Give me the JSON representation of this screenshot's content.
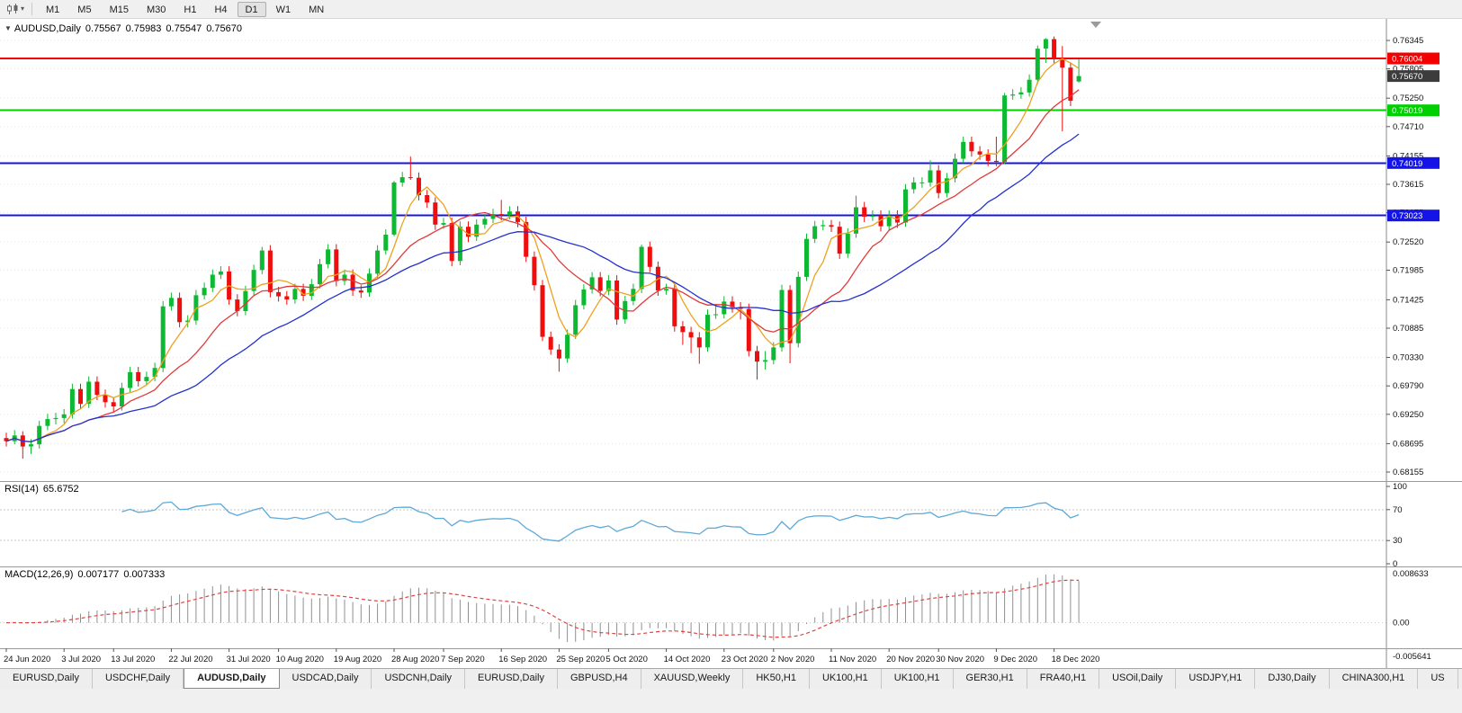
{
  "toolbar": {
    "timeframes": [
      {
        "label": "M1",
        "active": false
      },
      {
        "label": "M5",
        "active": false
      },
      {
        "label": "M15",
        "active": false
      },
      {
        "label": "M30",
        "active": false
      },
      {
        "label": "H1",
        "active": false
      },
      {
        "label": "H4",
        "active": false
      },
      {
        "label": "D1",
        "active": true
      },
      {
        "label": "W1",
        "active": false
      },
      {
        "label": "MN",
        "active": false
      }
    ]
  },
  "chart": {
    "symbol_title": "AUDUSD,Daily",
    "ohlc": {
      "open": "0.75567",
      "high": "0.75983",
      "low": "0.75547",
      "close": "0.75670"
    },
    "price_axis": {
      "labels": [
        "0.76345",
        "0.75805",
        "0.75250",
        "0.74710",
        "0.74155",
        "0.73615",
        "0.73075",
        "0.72520",
        "0.71985",
        "0.71425",
        "0.70885",
        "0.70330",
        "0.69790",
        "0.69250",
        "0.68695",
        "0.68155"
      ]
    },
    "price_lines": [
      {
        "price": 0.76004,
        "color": "#f40000",
        "label": "0.76004"
      },
      {
        "price": 0.75019,
        "color": "#00d000",
        "label": "0.75019"
      },
      {
        "price": 0.74019,
        "color": "#1414e6",
        "label": "0.74019"
      },
      {
        "price": 0.73023,
        "color": "#1414e6",
        "label": "0.73023"
      }
    ],
    "current_price_tag": {
      "price": 0.7567,
      "label": "0.75670",
      "color": "#3c3c3c"
    },
    "moving_averages": [
      {
        "name": "ma-fast",
        "period": 5,
        "color": "#eea11e"
      },
      {
        "name": "ma-mid",
        "period": 12,
        "color": "#e03a3a"
      },
      {
        "name": "ma-slow",
        "period": 24,
        "color": "#2433cd"
      }
    ],
    "colors": {
      "bull": "#0db832",
      "bear": "#ef0d0d",
      "grid": "#e6e6e6",
      "background": "#ffffff"
    },
    "chart_data": {
      "type": "candlestick",
      "symbol": "AUDUSD",
      "timeframe": "Daily",
      "candles": [
        [
          0.688,
          0.689,
          0.6864,
          0.6874
        ],
        [
          0.6874,
          0.6895,
          0.6868,
          0.6885
        ],
        [
          0.6885,
          0.6893,
          0.6841,
          0.6864
        ],
        [
          0.6864,
          0.6878,
          0.685,
          0.6868
        ],
        [
          0.6868,
          0.6913,
          0.686,
          0.6903
        ],
        [
          0.6903,
          0.6926,
          0.6895,
          0.6916
        ],
        [
          0.6916,
          0.6928,
          0.6906,
          0.6918
        ],
        [
          0.6918,
          0.6935,
          0.6908,
          0.6925
        ],
        [
          0.6925,
          0.6983,
          0.6917,
          0.6973
        ],
        [
          0.6973,
          0.6983,
          0.6935,
          0.6945
        ],
        [
          0.6945,
          0.6997,
          0.6937,
          0.6987
        ],
        [
          0.6987,
          0.6997,
          0.6952,
          0.6962
        ],
        [
          0.6962,
          0.6972,
          0.6938,
          0.6948
        ],
        [
          0.6948,
          0.6958,
          0.693,
          0.694
        ],
        [
          0.694,
          0.6985,
          0.6932,
          0.6975
        ],
        [
          0.6975,
          0.7015,
          0.6967,
          0.7005
        ],
        [
          0.7005,
          0.7015,
          0.6978,
          0.6988
        ],
        [
          0.6988,
          0.7006,
          0.698,
          0.6996
        ],
        [
          0.6996,
          0.7023,
          0.6988,
          0.7013
        ],
        [
          0.7013,
          0.714,
          0.7005,
          0.713
        ],
        [
          0.713,
          0.7156,
          0.7122,
          0.7146
        ],
        [
          0.7146,
          0.7156,
          0.709,
          0.71
        ],
        [
          0.71,
          0.7113,
          0.709,
          0.7103
        ],
        [
          0.7103,
          0.7161,
          0.7095,
          0.7151
        ],
        [
          0.7151,
          0.7175,
          0.7143,
          0.7165
        ],
        [
          0.7165,
          0.72,
          0.7157,
          0.719
        ],
        [
          0.719,
          0.7206,
          0.7182,
          0.7196
        ],
        [
          0.7196,
          0.7206,
          0.7133,
          0.7143
        ],
        [
          0.7143,
          0.7153,
          0.7111,
          0.7121
        ],
        [
          0.7121,
          0.7169,
          0.7113,
          0.7159
        ],
        [
          0.7159,
          0.7209,
          0.7151,
          0.7199
        ],
        [
          0.7199,
          0.7243,
          0.7191,
          0.7236
        ],
        [
          0.7236,
          0.7246,
          0.7147,
          0.7157
        ],
        [
          0.7157,
          0.7167,
          0.7139,
          0.7149
        ],
        [
          0.7149,
          0.7159,
          0.7133,
          0.7143
        ],
        [
          0.7143,
          0.7173,
          0.7135,
          0.7163
        ],
        [
          0.7163,
          0.7173,
          0.714,
          0.715
        ],
        [
          0.715,
          0.7182,
          0.7142,
          0.7172
        ],
        [
          0.7172,
          0.722,
          0.7164,
          0.721
        ],
        [
          0.721,
          0.7248,
          0.7202,
          0.7238
        ],
        [
          0.7238,
          0.7248,
          0.7168,
          0.7178
        ],
        [
          0.7178,
          0.72,
          0.717,
          0.719
        ],
        [
          0.719,
          0.72,
          0.715,
          0.716
        ],
        [
          0.716,
          0.717,
          0.7146,
          0.7156
        ],
        [
          0.7156,
          0.7202,
          0.7148,
          0.7192
        ],
        [
          0.7192,
          0.7246,
          0.7184,
          0.7236
        ],
        [
          0.7236,
          0.7276,
          0.7228,
          0.7266
        ],
        [
          0.7266,
          0.7368,
          0.7263,
          0.7365
        ],
        [
          0.7365,
          0.7385,
          0.7357,
          0.7375
        ],
        [
          0.7375,
          0.7414,
          0.737,
          0.7374
        ],
        [
          0.7374,
          0.7384,
          0.7331,
          0.7341
        ],
        [
          0.7341,
          0.7351,
          0.7317,
          0.7327
        ],
        [
          0.7327,
          0.7337,
          0.7275,
          0.7285
        ],
        [
          0.7285,
          0.7298,
          0.7277,
          0.7288
        ],
        [
          0.7288,
          0.7298,
          0.7206,
          0.7216
        ],
        [
          0.7216,
          0.7291,
          0.7208,
          0.7281
        ],
        [
          0.7281,
          0.7291,
          0.7252,
          0.7262
        ],
        [
          0.7262,
          0.7295,
          0.7254,
          0.7285
        ],
        [
          0.7285,
          0.7306,
          0.7277,
          0.7296
        ],
        [
          0.7296,
          0.7315,
          0.7288,
          0.7305
        ],
        [
          0.7305,
          0.7332,
          0.7293,
          0.7303
        ],
        [
          0.7303,
          0.732,
          0.7295,
          0.731
        ],
        [
          0.731,
          0.732,
          0.728,
          0.729
        ],
        [
          0.729,
          0.73,
          0.7214,
          0.7224
        ],
        [
          0.7224,
          0.7234,
          0.716,
          0.717
        ],
        [
          0.717,
          0.718,
          0.7064,
          0.7072
        ],
        [
          0.7072,
          0.7082,
          0.7038,
          0.7048
        ],
        [
          0.7048,
          0.7058,
          0.7006,
          0.7031
        ],
        [
          0.7031,
          0.7086,
          0.7023,
          0.7076
        ],
        [
          0.7076,
          0.7142,
          0.7068,
          0.7132
        ],
        [
          0.7132,
          0.7172,
          0.7124,
          0.7162
        ],
        [
          0.7162,
          0.7195,
          0.7154,
          0.7185
        ],
        [
          0.7185,
          0.7195,
          0.7149,
          0.7159
        ],
        [
          0.7159,
          0.7189,
          0.7151,
          0.7179
        ],
        [
          0.7179,
          0.7189,
          0.7095,
          0.7105
        ],
        [
          0.7105,
          0.715,
          0.7097,
          0.714
        ],
        [
          0.714,
          0.7173,
          0.7132,
          0.7163
        ],
        [
          0.7163,
          0.7247,
          0.7155,
          0.7243
        ],
        [
          0.7243,
          0.7253,
          0.7195,
          0.7205
        ],
        [
          0.7205,
          0.7215,
          0.715,
          0.716
        ],
        [
          0.716,
          0.7173,
          0.7152,
          0.7163
        ],
        [
          0.7163,
          0.7173,
          0.7082,
          0.7092
        ],
        [
          0.7092,
          0.7102,
          0.7057,
          0.7081
        ],
        [
          0.7081,
          0.7091,
          0.7041,
          0.7071
        ],
        [
          0.7071,
          0.7081,
          0.7021,
          0.7052
        ],
        [
          0.7052,
          0.7124,
          0.7044,
          0.7114
        ],
        [
          0.7114,
          0.7134,
          0.7106,
          0.7115
        ],
        [
          0.7115,
          0.7149,
          0.7107,
          0.7139
        ],
        [
          0.7139,
          0.7149,
          0.7118,
          0.7128
        ],
        [
          0.7128,
          0.7138,
          0.7105,
          0.7125
        ],
        [
          0.7125,
          0.7135,
          0.7035,
          0.7045
        ],
        [
          0.7045,
          0.7055,
          0.6991,
          0.7025
        ],
        [
          0.7025,
          0.7045,
          0.701,
          0.7028
        ],
        [
          0.7028,
          0.7062,
          0.702,
          0.7052
        ],
        [
          0.7052,
          0.7171,
          0.7044,
          0.7161
        ],
        [
          0.7161,
          0.717,
          0.7022,
          0.706
        ],
        [
          0.706,
          0.7196,
          0.7052,
          0.7186
        ],
        [
          0.7186,
          0.7268,
          0.7178,
          0.7258
        ],
        [
          0.7258,
          0.7292,
          0.725,
          0.7282
        ],
        [
          0.7282,
          0.7294,
          0.7274,
          0.7284
        ],
        [
          0.7284,
          0.7294,
          0.7271,
          0.7281
        ],
        [
          0.7281,
          0.7291,
          0.722,
          0.723
        ],
        [
          0.723,
          0.7278,
          0.7222,
          0.7268
        ],
        [
          0.7268,
          0.734,
          0.726,
          0.7318
        ],
        [
          0.7318,
          0.7328,
          0.729,
          0.73
        ],
        [
          0.73,
          0.7312,
          0.7292,
          0.7302
        ],
        [
          0.7302,
          0.7312,
          0.7272,
          0.7282
        ],
        [
          0.7282,
          0.7312,
          0.7274,
          0.7302
        ],
        [
          0.7302,
          0.7312,
          0.7279,
          0.7289
        ],
        [
          0.7289,
          0.7362,
          0.7281,
          0.7352
        ],
        [
          0.7352,
          0.7375,
          0.7344,
          0.7365
        ],
        [
          0.7365,
          0.7375,
          0.7355,
          0.7365
        ],
        [
          0.7365,
          0.7407,
          0.7357,
          0.7388
        ],
        [
          0.7388,
          0.7398,
          0.7335,
          0.7345
        ],
        [
          0.7345,
          0.7383,
          0.7337,
          0.7373
        ],
        [
          0.7373,
          0.742,
          0.7365,
          0.741
        ],
        [
          0.741,
          0.7452,
          0.7402,
          0.7442
        ],
        [
          0.7442,
          0.7452,
          0.7414,
          0.7424
        ],
        [
          0.7424,
          0.7434,
          0.7408,
          0.7418
        ],
        [
          0.7418,
          0.7428,
          0.7396,
          0.7406
        ],
        [
          0.7406,
          0.7452,
          0.7396,
          0.7404
        ],
        [
          0.7404,
          0.7535,
          0.74,
          0.753
        ],
        [
          0.753,
          0.7542,
          0.7522,
          0.7532
        ],
        [
          0.7532,
          0.7546,
          0.7524,
          0.7536
        ],
        [
          0.7536,
          0.757,
          0.7528,
          0.756
        ],
        [
          0.756,
          0.7625,
          0.7552,
          0.7619
        ],
        [
          0.7619,
          0.7639,
          0.7592,
          0.7637
        ],
        [
          0.7637,
          0.7642,
          0.759,
          0.76
        ],
        [
          0.76,
          0.7624,
          0.7462,
          0.7583
        ],
        [
          0.7583,
          0.7593,
          0.751,
          0.752
        ],
        [
          0.75567,
          0.75983,
          0.75547,
          0.7567
        ]
      ]
    }
  },
  "rsi": {
    "name": "RSI(14)",
    "value": "65.6752",
    "period": 14,
    "color": "#5da9d7",
    "levels": [
      100,
      70,
      30,
      0
    ],
    "dashed_levels": [
      70,
      30
    ]
  },
  "macd": {
    "name": "MACD(12,26,9)",
    "main_value": "0.007177",
    "signal_value": "0.007333",
    "fast": 12,
    "slow": 26,
    "signal": 9,
    "axis_top": "0.008633",
    "axis_zero": "0.00",
    "axis_bottom": "-0.005641",
    "histogram_color": "#8f8f8f",
    "signal_color": "#e04343"
  },
  "time_axis": {
    "labels": [
      {
        "text": "24 Jun 2020",
        "index": 0
      },
      {
        "text": "3 Jul 2020",
        "index": 7
      },
      {
        "text": "13 Jul 2020",
        "index": 13
      },
      {
        "text": "22 Jul 2020",
        "index": 20
      },
      {
        "text": "31 Jul 2020",
        "index": 27
      },
      {
        "text": "10 Aug 2020",
        "index": 33
      },
      {
        "text": "19 Aug 2020",
        "index": 40
      },
      {
        "text": "28 Aug 2020",
        "index": 47
      },
      {
        "text": "7 Sep 2020",
        "index": 53
      },
      {
        "text": "16 Sep 2020",
        "index": 60
      },
      {
        "text": "25 Sep 2020",
        "index": 67
      },
      {
        "text": "5 Oct 2020",
        "index": 73
      },
      {
        "text": "14 Oct 2020",
        "index": 80
      },
      {
        "text": "23 Oct 2020",
        "index": 87
      },
      {
        "text": "2 Nov 2020",
        "index": 93
      },
      {
        "text": "11 Nov 2020",
        "index": 100
      },
      {
        "text": "20 Nov 2020",
        "index": 107
      },
      {
        "text": "30 Nov 2020",
        "index": 113
      },
      {
        "text": "9 Dec 2020",
        "index": 120
      },
      {
        "text": "18 Dec 2020",
        "index": 127
      }
    ]
  },
  "tabs": {
    "items": [
      {
        "label": "EURUSD,Daily",
        "active": false
      },
      {
        "label": "USDCHF,Daily",
        "active": false
      },
      {
        "label": "AUDUSD,Daily",
        "active": true
      },
      {
        "label": "USDCAD,Daily",
        "active": false
      },
      {
        "label": "USDCNH,Daily",
        "active": false
      },
      {
        "label": "EURUSD,Daily",
        "active": false
      },
      {
        "label": "GBPUSD,H4",
        "active": false
      },
      {
        "label": "XAUUSD,Weekly",
        "active": false
      },
      {
        "label": "HK50,H1",
        "active": false
      },
      {
        "label": "UK100,H1",
        "active": false
      },
      {
        "label": "UK100,H1",
        "active": false
      },
      {
        "label": "GER30,H1",
        "active": false
      },
      {
        "label": "FRA40,H1",
        "active": false
      },
      {
        "label": "USOil,Daily",
        "active": false
      },
      {
        "label": "USDJPY,H1",
        "active": false
      },
      {
        "label": "DJ30,Daily",
        "active": false
      },
      {
        "label": "CHINA300,H1",
        "active": false
      },
      {
        "label": "US",
        "active": false
      }
    ]
  }
}
